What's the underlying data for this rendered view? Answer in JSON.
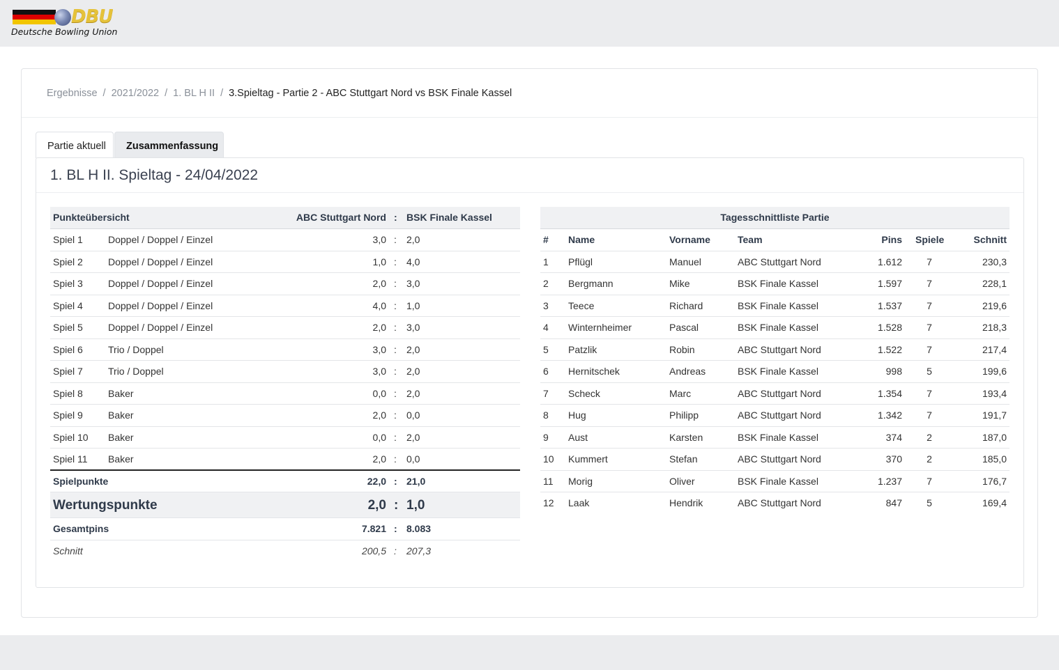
{
  "logo": {
    "text": "DBU",
    "subtitle": "Deutsche Bowling Union"
  },
  "breadcrumb": [
    "Ergebnisse",
    "2021/2022",
    "1. BL H II",
    "3.Spieltag - Partie 2 - ABC Stuttgart Nord vs BSK Finale Kassel"
  ],
  "tabs": [
    {
      "label": "Partie aktuell"
    },
    {
      "label": "Zusammenfassung"
    }
  ],
  "panel_title": "1. BL H II. Spieltag - 24/04/2022",
  "points": {
    "header": {
      "title": "Punkteübersicht",
      "home": "ABC Stuttgart Nord",
      "sep": ":",
      "guest": "BSK Finale Kassel"
    },
    "rows": [
      {
        "spiel": "Spiel 1",
        "typ": "Doppel / Doppel / Einzel",
        "home": "3,0",
        "guest": "2,0"
      },
      {
        "spiel": "Spiel 2",
        "typ": "Doppel / Doppel / Einzel",
        "home": "1,0",
        "guest": "4,0"
      },
      {
        "spiel": "Spiel 3",
        "typ": "Doppel / Doppel / Einzel",
        "home": "2,0",
        "guest": "3,0"
      },
      {
        "spiel": "Spiel 4",
        "typ": "Doppel / Doppel / Einzel",
        "home": "4,0",
        "guest": "1,0"
      },
      {
        "spiel": "Spiel 5",
        "typ": "Doppel / Doppel / Einzel",
        "home": "2,0",
        "guest": "3,0"
      },
      {
        "spiel": "Spiel 6",
        "typ": "Trio / Doppel",
        "home": "3,0",
        "guest": "2,0"
      },
      {
        "spiel": "Spiel 7",
        "typ": "Trio / Doppel",
        "home": "3,0",
        "guest": "2,0"
      },
      {
        "spiel": "Spiel 8",
        "typ": "Baker",
        "home": "0,0",
        "guest": "2,0"
      },
      {
        "spiel": "Spiel 9",
        "typ": "Baker",
        "home": "2,0",
        "guest": "0,0"
      },
      {
        "spiel": "Spiel 10",
        "typ": "Baker",
        "home": "0,0",
        "guest": "2,0"
      },
      {
        "spiel": "Spiel 11",
        "typ": "Baker",
        "home": "2,0",
        "guest": "0,0"
      }
    ],
    "spielpunkte": {
      "label": "Spielpunkte",
      "home": "22,0",
      "guest": "21,0"
    },
    "wertungspunkte": {
      "label": "Wertungspunkte",
      "home": "2,0",
      "guest": "1,0"
    },
    "gesamtpins": {
      "label": "Gesamtpins",
      "home": "7.821",
      "guest": "8.083"
    },
    "schnitt": {
      "label": "Schnitt",
      "home": "200,5",
      "guest": "207,3"
    }
  },
  "ranking": {
    "title": "Tagesschnittliste Partie",
    "headers": {
      "num": "#",
      "name": "Name",
      "vorname": "Vorname",
      "team": "Team",
      "pins": "Pins",
      "spiele": "Spiele",
      "schnitt": "Schnitt"
    },
    "rows": [
      {
        "num": "1",
        "name": "Pflügl",
        "vorname": "Manuel",
        "team": "ABC Stuttgart Nord",
        "pins": "1.612",
        "spiele": "7",
        "schnitt": "230,3"
      },
      {
        "num": "2",
        "name": "Bergmann",
        "vorname": "Mike",
        "team": "BSK Finale Kassel",
        "pins": "1.597",
        "spiele": "7",
        "schnitt": "228,1"
      },
      {
        "num": "3",
        "name": "Teece",
        "vorname": "Richard",
        "team": "BSK Finale Kassel",
        "pins": "1.537",
        "spiele": "7",
        "schnitt": "219,6"
      },
      {
        "num": "4",
        "name": "Winternheimer",
        "vorname": "Pascal",
        "team": "BSK Finale Kassel",
        "pins": "1.528",
        "spiele": "7",
        "schnitt": "218,3"
      },
      {
        "num": "5",
        "name": "Patzlik",
        "vorname": "Robin",
        "team": "ABC Stuttgart Nord",
        "pins": "1.522",
        "spiele": "7",
        "schnitt": "217,4"
      },
      {
        "num": "6",
        "name": "Hernitschek",
        "vorname": "Andreas",
        "team": "BSK Finale Kassel",
        "pins": "998",
        "spiele": "5",
        "schnitt": "199,6"
      },
      {
        "num": "7",
        "name": "Scheck",
        "vorname": "Marc",
        "team": "ABC Stuttgart Nord",
        "pins": "1.354",
        "spiele": "7",
        "schnitt": "193,4"
      },
      {
        "num": "8",
        "name": "Hug",
        "vorname": "Philipp",
        "team": "ABC Stuttgart Nord",
        "pins": "1.342",
        "spiele": "7",
        "schnitt": "191,7"
      },
      {
        "num": "9",
        "name": "Aust",
        "vorname": "Karsten",
        "team": "BSK Finale Kassel",
        "pins": "374",
        "spiele": "2",
        "schnitt": "187,0"
      },
      {
        "num": "10",
        "name": "Kummert",
        "vorname": "Stefan",
        "team": "ABC Stuttgart Nord",
        "pins": "370",
        "spiele": "2",
        "schnitt": "185,0"
      },
      {
        "num": "11",
        "name": "Morig",
        "vorname": "Oliver",
        "team": "BSK Finale Kassel",
        "pins": "1.237",
        "spiele": "7",
        "schnitt": "176,7"
      },
      {
        "num": "12",
        "name": "Laak",
        "vorname": "Hendrik",
        "team": "ABC Stuttgart Nord",
        "pins": "847",
        "spiele": "5",
        "schnitt": "169,4"
      }
    ]
  }
}
